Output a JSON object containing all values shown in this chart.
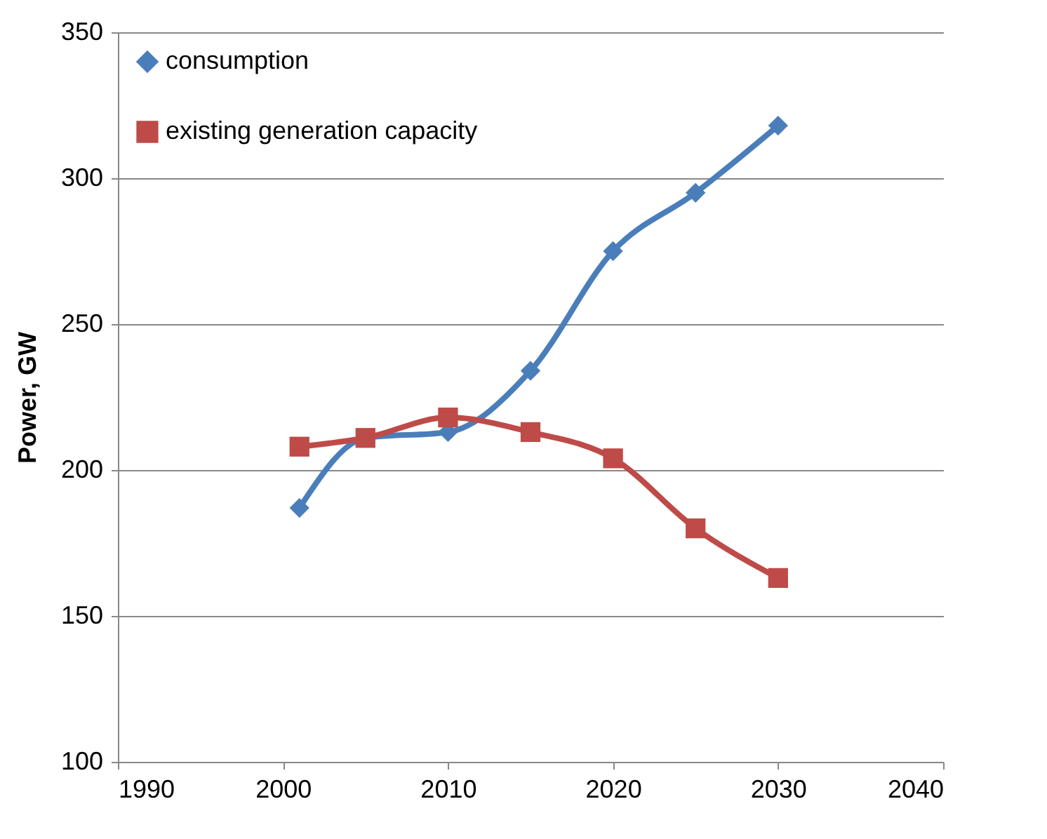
{
  "chart_data": {
    "type": "line",
    "ylabel": "Power, GW",
    "x": [
      2001,
      2005,
      2010,
      2015,
      2020,
      2025,
      2030
    ],
    "series": [
      {
        "name": "consumption",
        "color": "#4a7ebb",
        "marker": "diamond",
        "values": [
          187,
          211,
          213,
          234,
          275,
          295,
          318
        ]
      },
      {
        "name": "existing generation capacity",
        "color": "#be4b48",
        "marker": "square",
        "values": [
          208,
          211,
          218,
          213,
          204,
          180,
          163
        ]
      }
    ],
    "xlim": [
      1990,
      2040
    ],
    "xticks": [
      1990,
      2000,
      2010,
      2020,
      2030,
      2040
    ],
    "ylim": [
      100,
      350
    ],
    "yticks": [
      100,
      150,
      200,
      250,
      300,
      350
    ],
    "grid": "y",
    "legend": "top left",
    "line_style": "solid"
  }
}
